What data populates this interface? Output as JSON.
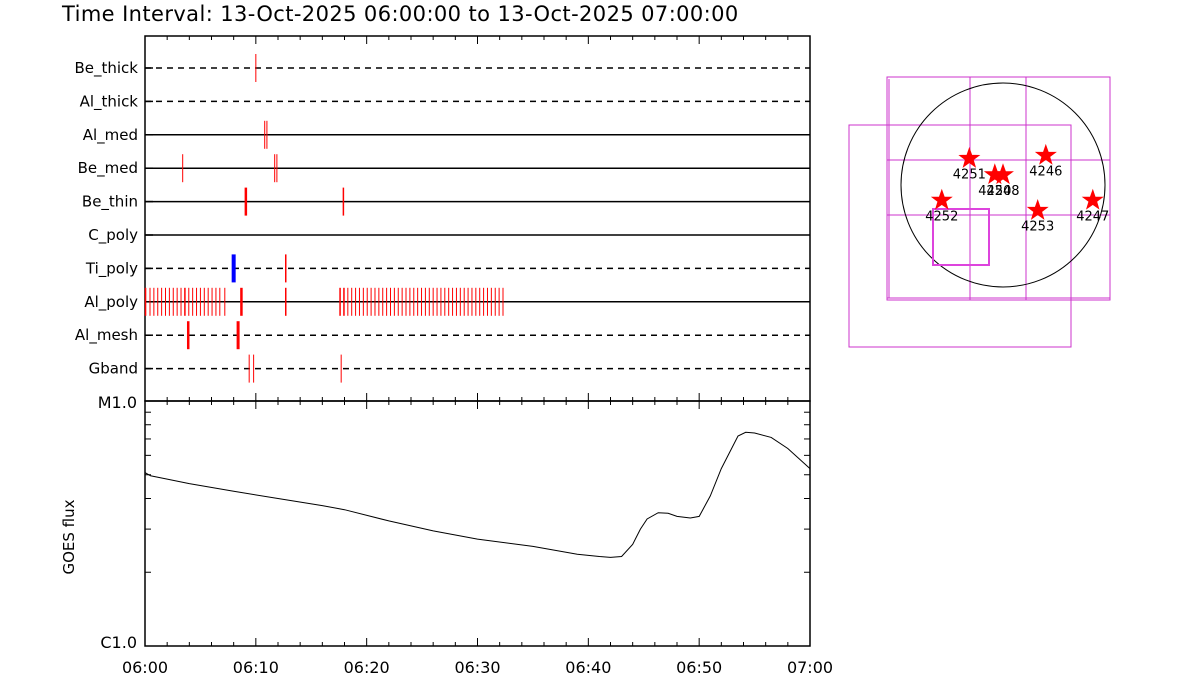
{
  "title": "Time Interval: 13-Oct-2025 06:00:00 to 13-Oct-2025 07:00:00",
  "chart_data": [
    {
      "type": "timeline",
      "x_range": [
        "06:00",
        "07:00"
      ],
      "rows": [
        {
          "label": "Be_thick",
          "style": "dashed",
          "events": [
            {
              "t": 10.0,
              "w": 1,
              "color": "#ff0000"
            }
          ]
        },
        {
          "label": "Al_thick",
          "style": "dashed",
          "events": []
        },
        {
          "label": "Al_med",
          "style": "solid",
          "events": [
            {
              "t": 10.8,
              "w": 1,
              "color": "#ff0000"
            },
            {
              "t": 11.0,
              "w": 1,
              "color": "#ff0000"
            }
          ]
        },
        {
          "label": "Be_med",
          "style": "solid",
          "events": [
            {
              "t": 3.4,
              "w": 1,
              "color": "#ff0000"
            },
            {
              "t": 11.7,
              "w": 1,
              "color": "#ff0000"
            },
            {
              "t": 11.9,
              "w": 1,
              "color": "#ff0000"
            }
          ]
        },
        {
          "label": "Be_thin",
          "style": "solid",
          "events": [
            {
              "t": 9.1,
              "w": 2.5,
              "color": "#ff0000"
            },
            {
              "t": 17.9,
              "w": 1.5,
              "color": "#ff0000"
            }
          ]
        },
        {
          "label": "C_poly",
          "style": "solid",
          "events": []
        },
        {
          "label": "Ti_poly",
          "style": "dashed",
          "events": [
            {
              "t": 8.0,
              "w": 4,
              "color": "#0000ff"
            },
            {
              "t": 12.7,
              "w": 1.5,
              "color": "#ff0000"
            }
          ]
        },
        {
          "label": "Al_poly",
          "style": "solid",
          "events": [
            {
              "t": 0.05,
              "w": 1.5,
              "color": "#ff0000"
            },
            {
              "t": 0.45,
              "w": 1,
              "color": "#ff0000"
            },
            {
              "t": 0.8,
              "w": 1,
              "color": "#ff0000"
            },
            {
              "t": 1.15,
              "w": 1,
              "color": "#ff0000"
            },
            {
              "t": 1.5,
              "w": 1,
              "color": "#ff0000"
            },
            {
              "t": 1.85,
              "w": 1,
              "color": "#ff0000"
            },
            {
              "t": 2.2,
              "w": 1,
              "color": "#ff0000"
            },
            {
              "t": 2.55,
              "w": 1,
              "color": "#ff0000"
            },
            {
              "t": 2.9,
              "w": 1,
              "color": "#ff0000"
            },
            {
              "t": 3.25,
              "w": 1,
              "color": "#ff0000"
            },
            {
              "t": 3.6,
              "w": 1.5,
              "color": "#ff0000"
            },
            {
              "t": 3.95,
              "w": 1,
              "color": "#ff0000"
            },
            {
              "t": 4.3,
              "w": 1,
              "color": "#ff0000"
            },
            {
              "t": 4.65,
              "w": 1,
              "color": "#ff0000"
            },
            {
              "t": 5.0,
              "w": 1,
              "color": "#ff0000"
            },
            {
              "t": 5.35,
              "w": 1,
              "color": "#ff0000"
            },
            {
              "t": 5.7,
              "w": 1,
              "color": "#ff0000"
            },
            {
              "t": 6.05,
              "w": 1,
              "color": "#ff0000"
            },
            {
              "t": 6.4,
              "w": 1,
              "color": "#ff0000"
            },
            {
              "t": 6.75,
              "w": 1,
              "color": "#ff0000"
            },
            {
              "t": 7.2,
              "w": 1,
              "color": "#ff0000"
            },
            {
              "t": 8.7,
              "w": 2.5,
              "color": "#ff0000"
            },
            {
              "t": 12.7,
              "w": 1.5,
              "color": "#ff0000"
            },
            {
              "t": 17.6,
              "w": 1.5,
              "color": "#ff0000"
            },
            {
              "t": 17.95,
              "w": 1.5,
              "color": "#ff0000"
            },
            {
              "t": 18.3,
              "w": 1,
              "color": "#ff0000"
            },
            {
              "t": 18.65,
              "w": 1,
              "color": "#ff0000"
            },
            {
              "t": 19.0,
              "w": 1,
              "color": "#ff0000"
            },
            {
              "t": 19.35,
              "w": 1,
              "color": "#ff0000"
            },
            {
              "t": 19.7,
              "w": 1,
              "color": "#ff0000"
            },
            {
              "t": 20.05,
              "w": 1,
              "color": "#ff0000"
            },
            {
              "t": 20.4,
              "w": 1,
              "color": "#ff0000"
            },
            {
              "t": 20.75,
              "w": 1,
              "color": "#ff0000"
            },
            {
              "t": 21.1,
              "w": 1,
              "color": "#ff0000"
            },
            {
              "t": 21.45,
              "w": 1,
              "color": "#ff0000"
            },
            {
              "t": 21.8,
              "w": 1,
              "color": "#ff0000"
            },
            {
              "t": 22.15,
              "w": 1,
              "color": "#ff0000"
            },
            {
              "t": 22.5,
              "w": 1,
              "color": "#ff0000"
            },
            {
              "t": 22.85,
              "w": 1,
              "color": "#ff0000"
            },
            {
              "t": 23.2,
              "w": 1,
              "color": "#ff0000"
            },
            {
              "t": 23.55,
              "w": 1,
              "color": "#ff0000"
            },
            {
              "t": 23.9,
              "w": 1,
              "color": "#ff0000"
            },
            {
              "t": 24.25,
              "w": 1,
              "color": "#ff0000"
            },
            {
              "t": 24.6,
              "w": 1,
              "color": "#ff0000"
            },
            {
              "t": 24.95,
              "w": 1,
              "color": "#ff0000"
            },
            {
              "t": 25.3,
              "w": 1,
              "color": "#ff0000"
            },
            {
              "t": 25.65,
              "w": 1,
              "color": "#ff0000"
            },
            {
              "t": 26.0,
              "w": 1,
              "color": "#ff0000"
            },
            {
              "t": 26.35,
              "w": 1,
              "color": "#ff0000"
            },
            {
              "t": 26.7,
              "w": 1,
              "color": "#ff0000"
            },
            {
              "t": 27.05,
              "w": 1,
              "color": "#ff0000"
            },
            {
              "t": 27.4,
              "w": 1,
              "color": "#ff0000"
            },
            {
              "t": 27.75,
              "w": 1,
              "color": "#ff0000"
            },
            {
              "t": 28.1,
              "w": 1,
              "color": "#ff0000"
            },
            {
              "t": 28.45,
              "w": 1,
              "color": "#ff0000"
            },
            {
              "t": 28.8,
              "w": 1,
              "color": "#ff0000"
            },
            {
              "t": 29.15,
              "w": 1,
              "color": "#ff0000"
            },
            {
              "t": 29.5,
              "w": 1,
              "color": "#ff0000"
            },
            {
              "t": 29.85,
              "w": 1,
              "color": "#ff0000"
            },
            {
              "t": 30.2,
              "w": 1,
              "color": "#ff0000"
            },
            {
              "t": 30.55,
              "w": 1,
              "color": "#ff0000"
            },
            {
              "t": 30.9,
              "w": 1,
              "color": "#ff0000"
            },
            {
              "t": 31.25,
              "w": 1,
              "color": "#ff0000"
            },
            {
              "t": 31.6,
              "w": 1,
              "color": "#ff0000"
            },
            {
              "t": 31.95,
              "w": 1,
              "color": "#ff0000"
            },
            {
              "t": 32.3,
              "w": 1,
              "color": "#ff0000"
            }
          ]
        },
        {
          "label": "Al_mesh",
          "style": "dashed",
          "events": [
            {
              "t": 3.9,
              "w": 2.5,
              "color": "#ff0000"
            },
            {
              "t": 8.4,
              "w": 3,
              "color": "#ff0000"
            }
          ]
        },
        {
          "label": "Gband",
          "style": "dashed",
          "events": [
            {
              "t": 9.4,
              "w": 1,
              "color": "#ff0000"
            },
            {
              "t": 9.8,
              "w": 1,
              "color": "#ff0000"
            },
            {
              "t": 17.7,
              "w": 1,
              "color": "#ff0000"
            }
          ]
        }
      ]
    },
    {
      "type": "line",
      "ylabel": "GOES flux",
      "y_scale": "log",
      "y_tick_labels": [
        "M1.0",
        "C1.0"
      ],
      "ylim": [
        1e-06,
        1e-05
      ],
      "x_tick_labels": [
        "06:00",
        "06:10",
        "06:20",
        "06:30",
        "06:40",
        "06:50",
        "07:00"
      ],
      "x_minutes": [
        0,
        0.5,
        2,
        4,
        8,
        12,
        16,
        18,
        22,
        26,
        30,
        35,
        39,
        41,
        42,
        43,
        44,
        44.7,
        45.3,
        46.3,
        47.2,
        48,
        49.2,
        50,
        51,
        52,
        53.5,
        54.2,
        55,
        56.5,
        58,
        60
      ],
      "values": [
        5.1e-06,
        4.95e-06,
        4.8e-06,
        4.6e-06,
        4.28e-06,
        4e-06,
        3.74e-06,
        3.6e-06,
        3.24e-06,
        2.95e-06,
        2.73e-06,
        2.55e-06,
        2.37e-06,
        2.32e-06,
        2.3e-06,
        2.32e-06,
        2.6e-06,
        3e-06,
        3.3e-06,
        3.5e-06,
        3.48e-06,
        3.38e-06,
        3.33e-06,
        3.38e-06,
        4.1e-06,
        5.3e-06,
        7.2e-06,
        7.45e-06,
        7.4e-06,
        7.1e-06,
        6.4e-06,
        5.3e-06
      ]
    }
  ],
  "ar_map": {
    "regions": [
      {
        "id": "4251",
        "lon": -0.33,
        "lat": 0.26
      },
      {
        "id": "4246",
        "lon": 0.42,
        "lat": 0.29
      },
      {
        "id": "4250",
        "lon": -0.08,
        "lat": 0.1
      },
      {
        "id": "4248",
        "lon": 0.0,
        "lat": 0.1
      },
      {
        "id": "4252",
        "lon": -0.6,
        "lat": -0.15
      },
      {
        "id": "4253",
        "lon": 0.34,
        "lat": -0.25
      },
      {
        "id": "4247",
        "lon": 0.88,
        "lat": -0.15
      }
    ],
    "label_text": [
      "4251",
      "4246",
      "4250",
      "4248",
      "4252",
      "4253",
      "4247"
    ],
    "star_color": "#ff0000",
    "box_color": "#cc33cc",
    "inner_box_color": "#dd44dd"
  }
}
